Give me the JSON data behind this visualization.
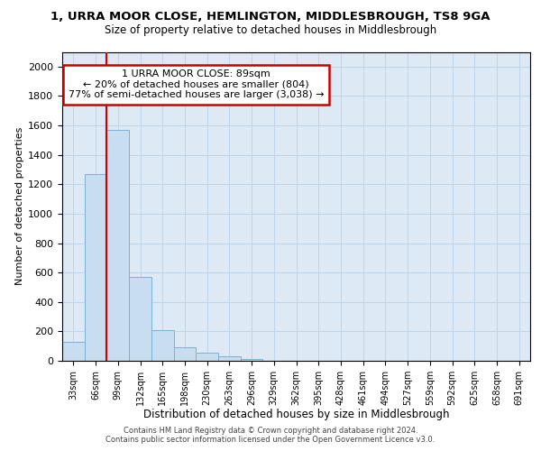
{
  "title_line1": "1, URRA MOOR CLOSE, HEMLINGTON, MIDDLESBROUGH, TS8 9GA",
  "title_line2": "Size of property relative to detached houses in Middlesbrough",
  "xlabel": "Distribution of detached houses by size in Middlesbrough",
  "ylabel": "Number of detached properties",
  "bar_color": "#c8ddf0",
  "bar_edge_color": "#7ab0d8",
  "categories": [
    "33sqm",
    "66sqm",
    "99sqm",
    "132sqm",
    "165sqm",
    "198sqm",
    "230sqm",
    "263sqm",
    "296sqm",
    "329sqm",
    "362sqm",
    "395sqm",
    "428sqm",
    "461sqm",
    "494sqm",
    "527sqm",
    "559sqm",
    "592sqm",
    "625sqm",
    "658sqm",
    "691sqm"
  ],
  "values": [
    130,
    1270,
    1570,
    570,
    210,
    95,
    55,
    30,
    15,
    0,
    0,
    0,
    0,
    0,
    0,
    0,
    0,
    0,
    0,
    0,
    0
  ],
  "ylim": [
    0,
    2100
  ],
  "yticks": [
    0,
    200,
    400,
    600,
    800,
    1000,
    1200,
    1400,
    1600,
    1800,
    2000
  ],
  "property_bar_index": 2,
  "annotation_text": "1 URRA MOOR CLOSE: 89sqm\n← 20% of detached houses are smaller (804)\n77% of semi-detached houses are larger (3,038) →",
  "annotation_box_facecolor": "#ffffff",
  "annotation_box_edgecolor": "#cc0000",
  "vline_color": "#cc0000",
  "grid_color": "#c0d4e8",
  "background_color": "#ddeaf6",
  "footer_text": "Contains HM Land Registry data © Crown copyright and database right 2024.\nContains public sector information licensed under the Open Government Licence v3.0."
}
